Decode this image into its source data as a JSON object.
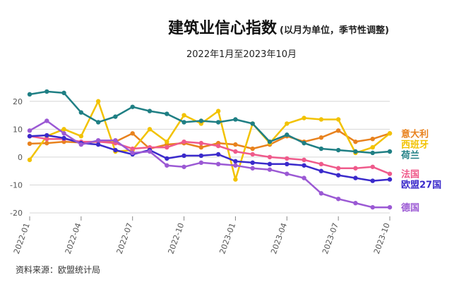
{
  "chart_data": {
    "type": "line",
    "title": "建筑业信心指数",
    "title_note": "(以月为单位，季节性调整)",
    "subtitle": "2022年1月至2023年10月",
    "source": "资料来源：欧盟统计局",
    "xlabel": "",
    "ylabel": "",
    "ylim": [
      -22,
      26
    ],
    "yticks": [
      20,
      10,
      0,
      -10,
      -20
    ],
    "grid": true,
    "legend": "right",
    "x": [
      "2022-01",
      "2022-02",
      "2022-03",
      "2022-04",
      "2022-05",
      "2022-06",
      "2022-07",
      "2022-08",
      "2022-09",
      "2022-10",
      "2022-11",
      "2022-12",
      "2023-01",
      "2023-02",
      "2023-03",
      "2023-04",
      "2023-05",
      "2023-06",
      "2023-07",
      "2023-08",
      "2023-09",
      "2023-10"
    ],
    "xtick_labels": [
      "2022-01",
      "2022-04",
      "2022-07",
      "2022-10",
      "2023-01",
      "2023-04",
      "2023-07",
      "2023-10"
    ],
    "series": [
      {
        "name": "意大利",
        "color": "#e8821e",
        "values": [
          4.8,
          5.0,
          5.5,
          5.2,
          5.5,
          5.5,
          8.5,
          3.0,
          4.5,
          5.0,
          3.5,
          5.0,
          4.5,
          3.0,
          4.5,
          7.5,
          5.5,
          7.0,
          9.5,
          5.5,
          6.5,
          8.5
        ]
      },
      {
        "name": "西班牙",
        "color": "#f2c200",
        "values": [
          -1.0,
          7.5,
          10.0,
          7.5,
          20.0,
          2.0,
          2.5,
          10.0,
          5.5,
          15.0,
          12.0,
          16.5,
          -8.0,
          12.0,
          5.0,
          12.0,
          14.0,
          13.5,
          13.5,
          1.5,
          3.5,
          8.5
        ]
      },
      {
        "name": "荷兰",
        "color": "#1f7f84",
        "values": [
          22.5,
          23.5,
          23.0,
          16.0,
          12.5,
          14.5,
          18.0,
          16.5,
          15.5,
          12.5,
          13.0,
          12.5,
          13.5,
          12.0,
          5.5,
          8.0,
          5.0,
          3.0,
          2.5,
          2.0,
          1.5,
          2.0
        ]
      },
      {
        "name": "法国",
        "color": "#ef5a8b",
        "values": [
          7.5,
          6.5,
          6.5,
          5.5,
          5.5,
          5.0,
          3.0,
          3.5,
          3.5,
          5.5,
          5.0,
          4.0,
          2.0,
          1.0,
          0.0,
          -0.5,
          -1.0,
          -2.5,
          -4.0,
          -4.0,
          -3.5,
          -6.0
        ]
      },
      {
        "name": "欧盟27国",
        "color": "#3a2acb",
        "values": [
          7.5,
          7.8,
          6.8,
          5.0,
          4.5,
          2.5,
          1.0,
          2.5,
          -0.5,
          0.5,
          0.5,
          1.0,
          -1.5,
          -2.0,
          -2.5,
          -2.5,
          -3.0,
          -5.0,
          -6.5,
          -7.5,
          -8.5,
          -8.0
        ]
      },
      {
        "name": "德国",
        "color": "#9b59d4",
        "values": [
          9.5,
          13.0,
          8.5,
          4.5,
          6.0,
          6.0,
          1.5,
          2.0,
          -3.0,
          -3.5,
          -2.0,
          -2.5,
          -3.0,
          -4.0,
          -4.5,
          -6.0,
          -7.5,
          -13.0,
          -15.0,
          -16.5,
          -18.0,
          -18.0
        ]
      }
    ]
  }
}
